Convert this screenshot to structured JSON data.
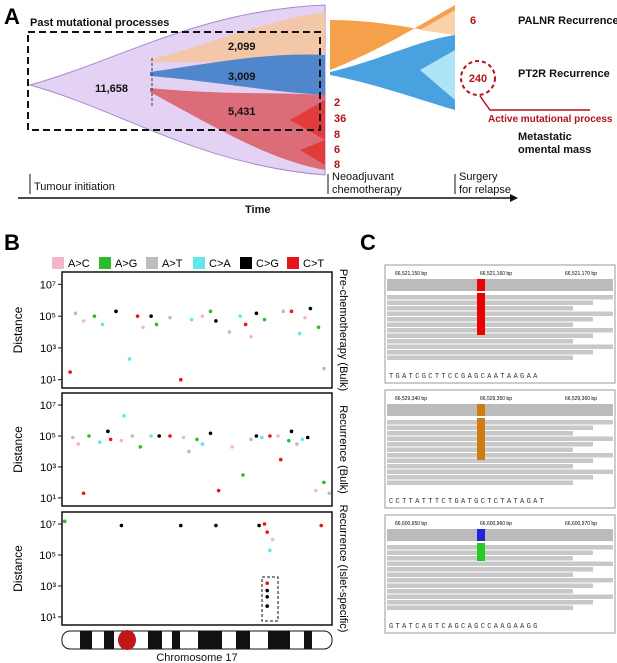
{
  "panel_letters": [
    "A",
    "B",
    "C"
  ],
  "panel_a": {
    "past_label": "Past mutational processes",
    "trunk": "11,658",
    "branch_orange": "2,099",
    "branch_blue": "3,009",
    "branch_red": "5,431",
    "sub_red": [
      "2",
      "36",
      "8",
      "6",
      "8"
    ],
    "palnr_count": "6",
    "pt2r_count": "240",
    "palnr": "PALNR Recurrence",
    "pt2r": "PT2R Recurrence",
    "active": "Active mutational process",
    "metastatic": [
      "Metastatic",
      "omental mass"
    ],
    "timeline": {
      "start": "Tumour initiation",
      "neo": [
        "Neoadjuvant",
        "chemotherapy"
      ],
      "surgery": [
        "Surgery",
        "for relapse"
      ],
      "axis": "Time"
    }
  },
  "panel_b": {
    "xlabel": "Chromosome 17"
  },
  "chart_data": [
    {
      "type": "scatter",
      "title": "Pre-chemotherapy (Bulk)",
      "ylabel": "Distance",
      "log_y": true,
      "xlim": [
        0,
        100
      ],
      "ylim": [
        3,
        60000000
      ],
      "yticks": [
        {
          "value": 10,
          "label": "10¹"
        },
        {
          "value": 1000,
          "label": "10³"
        },
        {
          "value": 100000,
          "label": "10⁵"
        },
        {
          "value": 10000000,
          "label": "10⁷"
        }
      ],
      "series": [
        {
          "name": "A>C",
          "color": "#f4b6c8",
          "x": [
            8,
            30,
            52,
            70,
            90
          ],
          "values": [
            50000,
            20000,
            100000,
            5000,
            80000
          ]
        },
        {
          "name": "A>G",
          "color": "#2dbb2d",
          "x": [
            12,
            35,
            55,
            75,
            95
          ],
          "values": [
            100000,
            30000,
            200000,
            60000,
            20000
          ]
        },
        {
          "name": "A>T",
          "color": "#bdbdbd",
          "x": [
            5,
            40,
            62,
            82,
            97
          ],
          "values": [
            150000,
            80000,
            10000,
            200000,
            50
          ]
        },
        {
          "name": "C>A",
          "color": "#5ee8ee",
          "x": [
            15,
            25,
            48,
            66,
            88
          ],
          "values": [
            30000,
            200,
            60000,
            100000,
            8000
          ]
        },
        {
          "name": "C>G",
          "color": "#000000",
          "x": [
            20,
            33,
            57,
            72,
            92
          ],
          "values": [
            200000,
            100000,
            50000,
            150000,
            300000
          ]
        },
        {
          "name": "C>T",
          "color": "#e8141c",
          "x": [
            3,
            28,
            44,
            68,
            85
          ],
          "values": [
            30,
            100000,
            10,
            30000,
            200000
          ]
        }
      ]
    },
    {
      "type": "scatter",
      "title": "Recurrence (Bulk)",
      "ylabel": "Distance",
      "log_y": true,
      "xlim": [
        0,
        100
      ],
      "ylim": [
        3,
        60000000
      ],
      "yticks": [
        {
          "value": 10,
          "label": "10¹"
        },
        {
          "value": 1000,
          "label": "10³"
        },
        {
          "value": 100000,
          "label": "10⁵"
        },
        {
          "value": 10000000,
          "label": "10⁷"
        }
      ],
      "series": [
        {
          "name": "A>C",
          "color": "#f4b6c8",
          "x": [
            6,
            22,
            45,
            63,
            80,
            94
          ],
          "values": [
            30000,
            50000,
            80000,
            20000,
            100000,
            30
          ]
        },
        {
          "name": "A>G",
          "color": "#2dbb2d",
          "x": [
            10,
            29,
            50,
            67,
            84,
            97
          ],
          "values": [
            100000,
            20000,
            60000,
            300,
            50000,
            100
          ]
        },
        {
          "name": "A>T",
          "color": "#bdbdbd",
          "x": [
            4,
            26,
            47,
            70,
            87,
            99
          ],
          "values": [
            80000,
            100000,
            10000,
            60000,
            30000,
            20
          ]
        },
        {
          "name": "C>A",
          "color": "#5ee8ee",
          "x": [
            14,
            33,
            52,
            74,
            89,
            23
          ],
          "values": [
            40000,
            100000,
            30000,
            80000,
            60000,
            2000000
          ]
        },
        {
          "name": "C>G",
          "color": "#000000",
          "x": [
            17,
            36,
            55,
            72,
            85,
            91
          ],
          "values": [
            200000,
            100000,
            150000,
            100000,
            200000,
            80000
          ]
        },
        {
          "name": "C>T",
          "color": "#e8141c",
          "x": [
            8,
            18,
            40,
            58,
            77,
            81
          ],
          "values": [
            20,
            60000,
            100000,
            30,
            100000,
            3000
          ]
        }
      ]
    },
    {
      "type": "scatter",
      "title": "Recurrence (Islet-specific)",
      "ylabel": "Distance",
      "log_y": true,
      "xlim": [
        0,
        100
      ],
      "ylim": [
        3,
        60000000
      ],
      "yticks": [
        {
          "value": 10,
          "label": "10¹"
        },
        {
          "value": 1000,
          "label": "10³"
        },
        {
          "value": 100000,
          "label": "10⁵"
        },
        {
          "value": 10000000,
          "label": "10⁷"
        }
      ],
      "series": [
        {
          "name": "A>C",
          "color": "#f4b6c8",
          "x": [
            78
          ],
          "values": [
            1000000
          ]
        },
        {
          "name": "A>G",
          "color": "#2dbb2d",
          "x": [
            1
          ],
          "values": [
            15000000
          ]
        },
        {
          "name": "A>T",
          "color": "#bdbdbd",
          "x": [],
          "values": []
        },
        {
          "name": "C>A",
          "color": "#5ee8ee",
          "x": [
            77
          ],
          "values": [
            200000
          ]
        },
        {
          "name": "C>G",
          "color": "#000000",
          "x": [
            22,
            44,
            57,
            73,
            76,
            76,
            76
          ],
          "values": [
            8000000,
            8000000,
            8000000,
            8000000,
            500,
            200,
            50
          ]
        },
        {
          "name": "C>T",
          "color": "#e8141c",
          "x": [
            75,
            96,
            76,
            76
          ],
          "values": [
            10000000,
            8000000,
            3000000,
            1500
          ]
        }
      ]
    }
  ],
  "panel_c": [
    {
      "coords": [
        "66,521,150 bp",
        "66,521,160 bp",
        "66,521,170 bp"
      ],
      "sequence": "TGATCGCTTCCGAGCAATAAGAA"
    },
    {
      "coords": [
        "66,529,340 bp",
        "66,529,350 bp",
        "66,529,360 bp"
      ],
      "sequence": "CCTTATTTCTGATGCTCTATAGAT"
    },
    {
      "coords": [
        "66,600,950 bp",
        "66,600,960 bp",
        "66,600,970 bp"
      ],
      "sequence": "GTATCAGTCAGCAGCCAAGAAGG"
    }
  ]
}
